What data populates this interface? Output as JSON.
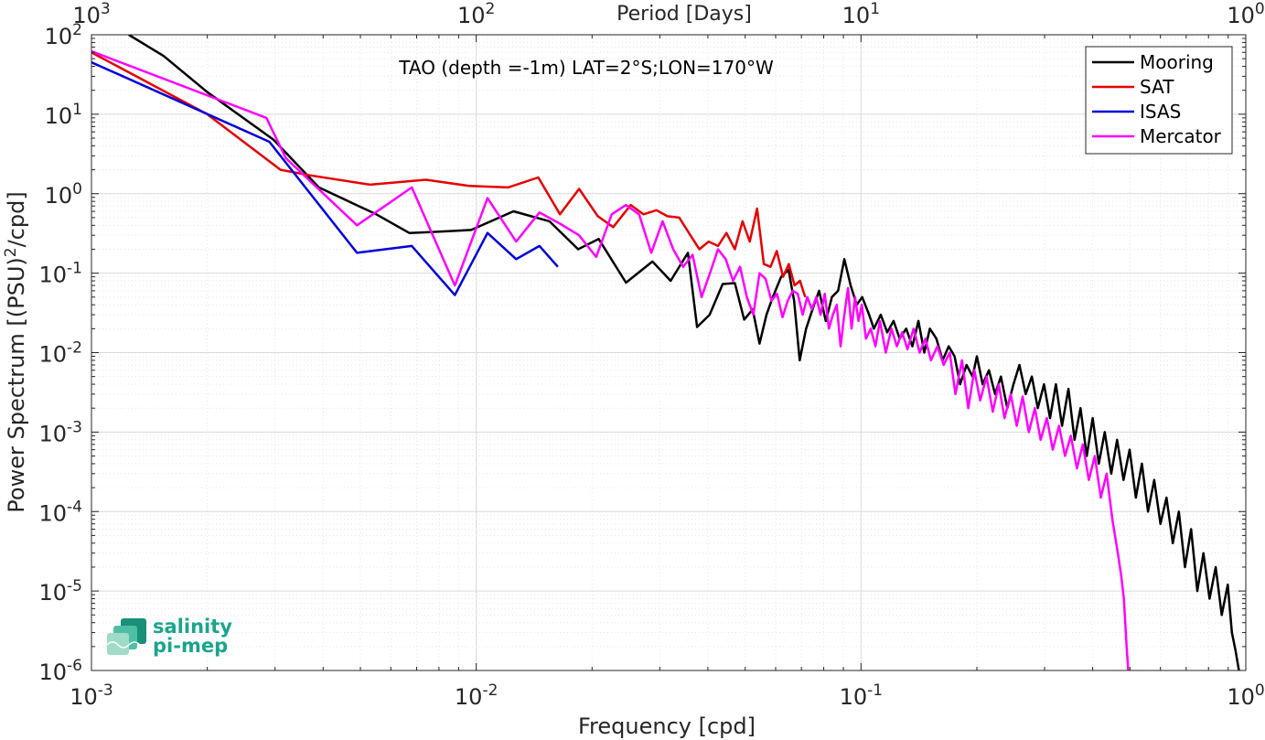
{
  "chart_data": {
    "type": "line",
    "title": "TAO (depth =-1m) LAT=2°S;LON=170°W",
    "xlabel": "Frequency [cpd]",
    "ylabel": "Power Spectrum [(PSU)^2/cpd]",
    "top_xlabel": "Period [Days]",
    "x_scale": "log",
    "y_scale": "log",
    "xlim": [
      0.001,
      1
    ],
    "ylim": [
      1e-06,
      100
    ],
    "grid": true,
    "legend_position": "top-right",
    "x_ticks": [
      {
        "value": 0.001,
        "base": "10",
        "exp": "-3"
      },
      {
        "value": 0.01,
        "base": "10",
        "exp": "-2"
      },
      {
        "value": 0.1,
        "base": "10",
        "exp": "-1"
      },
      {
        "value": 1,
        "base": "10",
        "exp": "0"
      }
    ],
    "top_x_ticks": [
      {
        "value": 0.001,
        "base": "10",
        "exp": "3"
      },
      {
        "value": 0.01,
        "base": "10",
        "exp": "2"
      },
      {
        "value": 0.1,
        "base": "10",
        "exp": "1"
      },
      {
        "value": 1,
        "base": "10",
        "exp": "0"
      }
    ],
    "y_ticks": [
      {
        "value": 100,
        "base": "10",
        "exp": "2"
      },
      {
        "value": 10,
        "base": "10",
        "exp": "1"
      },
      {
        "value": 1,
        "base": "10",
        "exp": "0"
      },
      {
        "value": 0.1,
        "base": "10",
        "exp": "-1"
      },
      {
        "value": 0.01,
        "base": "10",
        "exp": "-2"
      },
      {
        "value": 0.001,
        "base": "10",
        "exp": "-3"
      },
      {
        "value": 0.0001,
        "base": "10",
        "exp": "-4"
      },
      {
        "value": 1e-05,
        "base": "10",
        "exp": "-5"
      },
      {
        "value": 1e-06,
        "base": "10",
        "exp": "-6"
      }
    ],
    "series": [
      {
        "name": "Mooring",
        "color": "#000000",
        "points": [
          [
            0.00125,
            100
          ],
          [
            0.00154,
            54
          ],
          [
            0.002,
            19
          ],
          [
            0.00297,
            4.8
          ],
          [
            0.0039,
            1.2
          ],
          [
            0.0055,
            0.55
          ],
          [
            0.0067,
            0.32
          ],
          [
            0.0077,
            0.33
          ],
          [
            0.0097,
            0.35
          ],
          [
            0.0125,
            0.6
          ],
          [
            0.0155,
            0.45
          ],
          [
            0.0184,
            0.2
          ],
          [
            0.0208,
            0.27
          ],
          [
            0.0245,
            0.076
          ],
          [
            0.0287,
            0.14
          ],
          [
            0.032,
            0.08
          ],
          [
            0.0355,
            0.18
          ],
          [
            0.0375,
            0.021
          ],
          [
            0.0404,
            0.03
          ],
          [
            0.0437,
            0.073
          ],
          [
            0.047,
            0.075
          ],
          [
            0.0497,
            0.026
          ],
          [
            0.0523,
            0.035
          ],
          [
            0.0545,
            0.013
          ],
          [
            0.0568,
            0.03
          ],
          [
            0.059,
            0.05
          ],
          [
            0.062,
            0.09
          ],
          [
            0.0648,
            0.11
          ],
          [
            0.067,
            0.045
          ],
          [
            0.0693,
            0.008
          ],
          [
            0.072,
            0.02
          ],
          [
            0.0755,
            0.04
          ],
          [
            0.0778,
            0.06
          ],
          [
            0.081,
            0.025
          ],
          [
            0.084,
            0.05
          ],
          [
            0.0872,
            0.06
          ],
          [
            0.0905,
            0.15
          ],
          [
            0.094,
            0.07
          ],
          [
            0.0975,
            0.04
          ],
          [
            0.1007,
            0.05
          ],
          [
            0.105,
            0.03
          ],
          [
            0.108,
            0.02
          ],
          [
            0.1125,
            0.03
          ],
          [
            0.117,
            0.018
          ],
          [
            0.1215,
            0.025
          ],
          [
            0.126,
            0.015
          ],
          [
            0.131,
            0.02
          ],
          [
            0.136,
            0.012
          ],
          [
            0.141,
            0.025
          ],
          [
            0.146,
            0.01
          ],
          [
            0.151,
            0.02
          ],
          [
            0.157,
            0.015
          ],
          [
            0.163,
            0.008
          ],
          [
            0.169,
            0.012
          ],
          [
            0.175,
            0.009
          ],
          [
            0.181,
            0.004
          ],
          [
            0.188,
            0.007
          ],
          [
            0.195,
            0.005
          ],
          [
            0.2,
            0.009
          ],
          [
            0.207,
            0.004
          ],
          [
            0.215,
            0.006
          ],
          [
            0.223,
            0.003
          ],
          [
            0.231,
            0.005
          ],
          [
            0.24,
            0.002
          ],
          [
            0.249,
            0.004
          ],
          [
            0.258,
            0.007
          ],
          [
            0.268,
            0.003
          ],
          [
            0.278,
            0.005
          ],
          [
            0.288,
            0.002
          ],
          [
            0.299,
            0.004
          ],
          [
            0.31,
            0.0015
          ],
          [
            0.321,
            0.004
          ],
          [
            0.333,
            0.0012
          ],
          [
            0.346,
            0.0035
          ],
          [
            0.359,
            0.0008
          ],
          [
            0.372,
            0.002
          ],
          [
            0.386,
            0.0005
          ],
          [
            0.4,
            0.0015
          ],
          [
            0.415,
            0.0004
          ],
          [
            0.43,
            0.001
          ],
          [
            0.447,
            0.0003
          ],
          [
            0.463,
            0.0008
          ],
          [
            0.481,
            0.00025
          ],
          [
            0.499,
            0.0006
          ],
          [
            0.518,
            0.00015
          ],
          [
            0.537,
            0.0004
          ],
          [
            0.557,
            0.0001
          ],
          [
            0.578,
            0.00025
          ],
          [
            0.6,
            7e-05
          ],
          [
            0.622,
            0.00015
          ],
          [
            0.646,
            4e-05
          ],
          [
            0.67,
            0.0001
          ],
          [
            0.695,
            2e-05
          ],
          [
            0.721,
            6e-05
          ],
          [
            0.748,
            1e-05
          ],
          [
            0.776,
            3e-05
          ],
          [
            0.805,
            8e-06
          ],
          [
            0.835,
            2e-05
          ],
          [
            0.866,
            5e-06
          ],
          [
            0.898,
            1.2e-05
          ],
          [
            0.92,
            3e-06
          ],
          [
            0.94,
            1.8e-06
          ],
          [
            0.96,
            1e-06
          ]
        ]
      },
      {
        "name": "SAT",
        "color": "#e60000",
        "points": [
          [
            0.001,
            60
          ],
          [
            0.002,
            10
          ],
          [
            0.0031,
            2.0
          ],
          [
            0.0037,
            1.7
          ],
          [
            0.0053,
            1.3
          ],
          [
            0.0074,
            1.5
          ],
          [
            0.0096,
            1.25
          ],
          [
            0.0121,
            1.2
          ],
          [
            0.0145,
            1.6
          ],
          [
            0.0165,
            0.55
          ],
          [
            0.0185,
            1.15
          ],
          [
            0.0207,
            0.52
          ],
          [
            0.0227,
            0.38
          ],
          [
            0.0252,
            0.72
          ],
          [
            0.0272,
            0.55
          ],
          [
            0.0294,
            0.62
          ],
          [
            0.0314,
            0.52
          ],
          [
            0.0337,
            0.5
          ],
          [
            0.0357,
            0.32
          ],
          [
            0.038,
            0.2
          ],
          [
            0.0402,
            0.25
          ],
          [
            0.0425,
            0.22
          ],
          [
            0.0447,
            0.32
          ],
          [
            0.047,
            0.2
          ],
          [
            0.0492,
            0.45
          ],
          [
            0.0514,
            0.25
          ],
          [
            0.0537,
            0.65
          ],
          [
            0.0559,
            0.13
          ],
          [
            0.0582,
            0.12
          ],
          [
            0.0604,
            0.19
          ],
          [
            0.0627,
            0.09
          ],
          [
            0.0649,
            0.13
          ],
          [
            0.0672,
            0.07
          ],
          [
            0.0694,
            0.08
          ],
          [
            0.0716,
            0.05
          ]
        ]
      },
      {
        "name": "ISAS",
        "color": "#0000dd",
        "points": [
          [
            0.001,
            45
          ],
          [
            0.0029,
            4.5
          ],
          [
            0.0049,
            0.18
          ],
          [
            0.0068,
            0.22
          ],
          [
            0.0088,
            0.053
          ],
          [
            0.0107,
            0.32
          ],
          [
            0.0127,
            0.15
          ],
          [
            0.0146,
            0.22
          ],
          [
            0.0163,
            0.12
          ]
        ]
      },
      {
        "name": "Mercator",
        "color": "#ff00ff",
        "points": [
          [
            0.001,
            62
          ],
          [
            0.00285,
            9.0
          ],
          [
            0.0032,
            2.8
          ],
          [
            0.0049,
            0.4
          ],
          [
            0.0068,
            1.2
          ],
          [
            0.0088,
            0.07
          ],
          [
            0.0107,
            0.88
          ],
          [
            0.0127,
            0.25
          ],
          [
            0.0146,
            0.58
          ],
          [
            0.0165,
            0.42
          ],
          [
            0.0185,
            0.3
          ],
          [
            0.0205,
            0.16
          ],
          [
            0.0225,
            0.55
          ],
          [
            0.0245,
            0.72
          ],
          [
            0.0265,
            0.55
          ],
          [
            0.0285,
            0.18
          ],
          [
            0.0305,
            0.45
          ],
          [
            0.0325,
            0.2
          ],
          [
            0.0345,
            0.12
          ],
          [
            0.0365,
            0.17
          ],
          [
            0.0385,
            0.05
          ],
          [
            0.0405,
            0.1
          ],
          [
            0.0425,
            0.2
          ],
          [
            0.0445,
            0.15
          ],
          [
            0.0465,
            0.08
          ],
          [
            0.0485,
            0.12
          ],
          [
            0.0505,
            0.05
          ],
          [
            0.0525,
            0.03
          ],
          [
            0.0545,
            0.1
          ],
          [
            0.0565,
            0.085
          ],
          [
            0.0585,
            0.045
          ],
          [
            0.0605,
            0.055
          ],
          [
            0.0625,
            0.028
          ],
          [
            0.0645,
            0.045
          ],
          [
            0.0665,
            0.06
          ],
          [
            0.0685,
            0.055
          ],
          [
            0.0705,
            0.03
          ],
          [
            0.0725,
            0.05
          ],
          [
            0.0745,
            0.035
          ],
          [
            0.0765,
            0.05
          ],
          [
            0.0785,
            0.03
          ],
          [
            0.0805,
            0.055
          ],
          [
            0.0825,
            0.02
          ],
          [
            0.0845,
            0.03
          ],
          [
            0.0865,
            0.04
          ],
          [
            0.0885,
            0.012
          ],
          [
            0.0905,
            0.03
          ],
          [
            0.0925,
            0.065
          ],
          [
            0.0945,
            0.02
          ],
          [
            0.0965,
            0.05
          ],
          [
            0.0985,
            0.025
          ],
          [
            0.1005,
            0.04
          ],
          [
            0.103,
            0.015
          ],
          [
            0.106,
            0.02
          ],
          [
            0.109,
            0.012
          ],
          [
            0.112,
            0.025
          ],
          [
            0.116,
            0.01
          ],
          [
            0.12,
            0.02
          ],
          [
            0.124,
            0.012
          ],
          [
            0.128,
            0.018
          ],
          [
            0.132,
            0.011
          ],
          [
            0.137,
            0.02
          ],
          [
            0.142,
            0.01
          ],
          [
            0.147,
            0.015
          ],
          [
            0.152,
            0.008
          ],
          [
            0.158,
            0.012
          ],
          [
            0.164,
            0.007
          ],
          [
            0.17,
            0.01
          ],
          [
            0.176,
            0.003
          ],
          [
            0.183,
            0.008
          ],
          [
            0.19,
            0.002
          ],
          [
            0.197,
            0.006
          ],
          [
            0.204,
            0.0025
          ],
          [
            0.212,
            0.005
          ],
          [
            0.22,
            0.0018
          ],
          [
            0.228,
            0.004
          ],
          [
            0.236,
            0.0015
          ],
          [
            0.245,
            0.003
          ],
          [
            0.254,
            0.0012
          ],
          [
            0.263,
            0.0028
          ],
          [
            0.273,
            0.001
          ],
          [
            0.283,
            0.002
          ],
          [
            0.293,
            0.0008
          ],
          [
            0.304,
            0.0015
          ],
          [
            0.315,
            0.0006
          ],
          [
            0.327,
            0.0012
          ],
          [
            0.339,
            0.0005
          ],
          [
            0.351,
            0.0009
          ],
          [
            0.364,
            0.00035
          ],
          [
            0.377,
            0.0007
          ],
          [
            0.391,
            0.00025
          ],
          [
            0.405,
            0.0005
          ],
          [
            0.42,
            0.00015
          ],
          [
            0.435,
            0.0003
          ],
          [
            0.45,
            8e-05
          ],
          [
            0.465,
            3e-05
          ],
          [
            0.475,
            1.5e-05
          ],
          [
            0.482,
            8e-06
          ],
          [
            0.49,
            2e-06
          ],
          [
            0.495,
            1e-06
          ]
        ]
      }
    ]
  },
  "logo": {
    "line1": "salinity",
    "line2": "pi-mep",
    "color": "#1aa58c"
  }
}
